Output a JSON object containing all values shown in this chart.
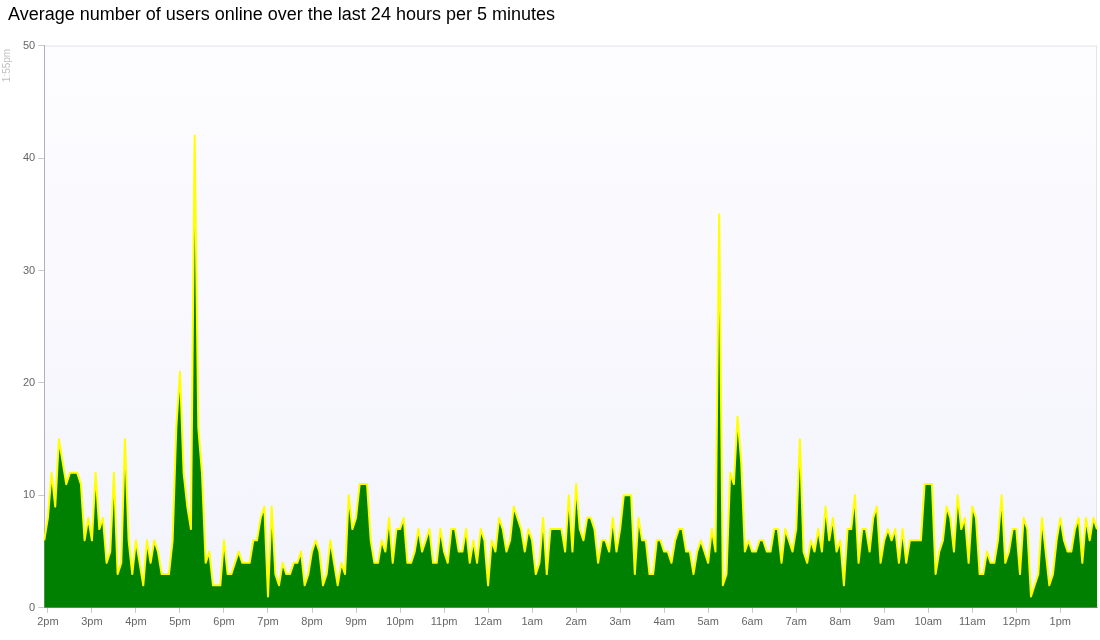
{
  "chart_data": {
    "type": "area",
    "title": "Average number of users online over the last 24 hours per 5 minutes",
    "annotations": [
      "1:55pm"
    ],
    "categories": [
      null,
      "2pm",
      null,
      null,
      null,
      null,
      null,
      null,
      null,
      null,
      null,
      null,
      null,
      "3pm",
      null,
      null,
      null,
      null,
      null,
      null,
      null,
      null,
      null,
      null,
      null,
      "4pm",
      null,
      null,
      null,
      null,
      null,
      null,
      null,
      null,
      null,
      null,
      null,
      "5pm",
      null,
      null,
      null,
      null,
      null,
      null,
      null,
      null,
      null,
      null,
      null,
      "6pm",
      null,
      null,
      null,
      null,
      null,
      null,
      null,
      null,
      null,
      null,
      null,
      "7pm",
      null,
      null,
      null,
      null,
      null,
      null,
      null,
      null,
      null,
      null,
      null,
      "8pm",
      null,
      null,
      null,
      null,
      null,
      null,
      null,
      null,
      null,
      null,
      null,
      "9pm",
      null,
      null,
      null,
      null,
      null,
      null,
      null,
      null,
      null,
      null,
      null,
      "10pm",
      null,
      null,
      null,
      null,
      null,
      null,
      null,
      null,
      null,
      null,
      null,
      "11pm",
      null,
      null,
      null,
      null,
      null,
      null,
      null,
      null,
      null,
      null,
      null,
      "12am",
      null,
      null,
      null,
      null,
      null,
      null,
      null,
      null,
      null,
      null,
      null,
      "1am",
      null,
      null,
      null,
      null,
      null,
      null,
      null,
      null,
      null,
      null,
      null,
      "2am",
      null,
      null,
      null,
      null,
      null,
      null,
      null,
      null,
      null,
      null,
      null,
      "3am",
      null,
      null,
      null,
      null,
      null,
      null,
      null,
      null,
      null,
      null,
      null,
      "4am",
      null,
      null,
      null,
      null,
      null,
      null,
      null,
      null,
      null,
      null,
      null,
      "5am",
      null,
      null,
      null,
      null,
      null,
      null,
      null,
      null,
      null,
      null,
      null,
      "6am",
      null,
      null,
      null,
      null,
      null,
      null,
      null,
      null,
      null,
      null,
      null,
      "7am",
      null,
      null,
      null,
      null,
      null,
      null,
      null,
      null,
      null,
      null,
      null,
      "8am",
      null,
      null,
      null,
      null,
      null,
      null,
      null,
      null,
      null,
      null,
      null,
      "9am",
      null,
      null,
      null,
      null,
      null,
      null,
      null,
      null,
      null,
      null,
      null,
      "10am",
      null,
      null,
      null,
      null,
      null,
      null,
      null,
      null,
      null,
      null,
      null,
      "11am",
      null,
      null,
      null,
      null,
      null,
      null,
      null,
      null,
      null,
      null,
      null,
      "12pm",
      null,
      null,
      null,
      null,
      null,
      null,
      null,
      null,
      null,
      null,
      null,
      "1pm",
      null,
      null,
      null,
      null,
      null,
      null,
      null,
      null,
      null,
      null
    ],
    "ylim": [
      0,
      50
    ],
    "yticks": [
      0,
      10,
      20,
      30,
      40,
      50
    ],
    "grid": false,
    "legend": false,
    "series": [
      {
        "color": "#008000",
        "values": [
          6,
          8,
          12,
          9,
          15,
          13,
          11,
          12,
          12,
          12,
          11,
          6,
          8,
          6,
          12,
          7,
          8,
          4,
          5,
          12,
          3,
          4,
          15,
          6,
          3,
          6,
          4,
          2,
          6,
          4,
          6,
          5,
          3,
          3,
          3,
          6,
          16,
          21,
          12,
          9,
          7,
          42,
          16,
          12,
          4,
          5,
          2,
          2,
          2,
          6,
          3,
          3,
          4,
          5,
          4,
          4,
          4,
          6,
          6,
          8,
          9,
          1,
          9,
          3,
          2,
          4,
          3,
          3,
          4,
          4,
          5,
          2,
          3,
          5,
          6,
          5,
          2,
          3,
          6,
          4,
          2,
          4,
          3,
          10,
          7,
          8,
          11,
          11,
          11,
          6,
          4,
          4,
          6,
          5,
          8,
          4,
          7,
          7,
          8,
          4,
          4,
          5,
          7,
          5,
          6,
          7,
          4,
          4,
          7,
          5,
          4,
          7,
          7,
          5,
          5,
          7,
          4,
          6,
          4,
          7,
          6,
          2,
          6,
          5,
          8,
          7,
          5,
          6,
          9,
          8,
          7,
          5,
          7,
          6,
          3,
          4,
          8,
          3,
          7,
          7,
          7,
          7,
          5,
          10,
          5,
          11,
          7,
          6,
          8,
          8,
          7,
          4,
          6,
          6,
          5,
          8,
          5,
          7,
          10,
          10,
          10,
          3,
          8,
          6,
          6,
          3,
          3,
          6,
          6,
          5,
          5,
          4,
          6,
          7,
          7,
          5,
          5,
          3,
          5,
          6,
          5,
          4,
          7,
          5,
          35,
          2,
          3,
          12,
          11,
          17,
          13,
          5,
          6,
          5,
          5,
          6,
          6,
          5,
          5,
          7,
          7,
          4,
          7,
          6,
          5,
          7,
          15,
          5,
          4,
          6,
          5,
          7,
          5,
          9,
          6,
          8,
          5,
          6,
          2,
          7,
          7,
          10,
          4,
          7,
          7,
          5,
          8,
          9,
          4,
          6,
          7,
          6,
          7,
          4,
          7,
          4,
          6,
          6,
          6,
          6,
          11,
          11,
          11,
          3,
          5,
          6,
          9,
          8,
          5,
          10,
          7,
          8,
          4,
          9,
          8,
          3,
          3,
          5,
          4,
          4,
          6,
          10,
          4,
          5,
          7,
          7,
          3,
          8,
          7,
          1,
          2,
          3,
          8,
          5,
          2,
          3,
          6,
          8,
          6,
          5,
          5,
          7,
          8,
          4,
          8,
          6,
          8,
          7
        ]
      }
    ]
  }
}
